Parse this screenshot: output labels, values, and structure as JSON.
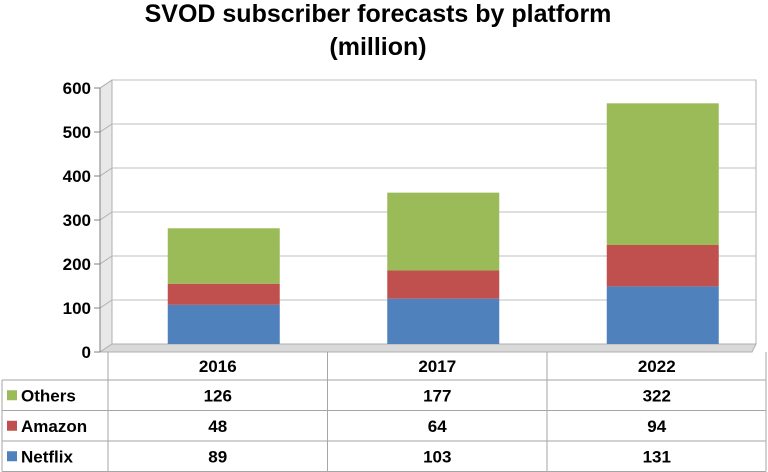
{
  "chart_data": {
    "type": "bar",
    "stacked": true,
    "title": "SVOD subscriber forecasts by platform",
    "subtitle": "(million)",
    "categories": [
      "2016",
      "2017",
      "2022"
    ],
    "series": [
      {
        "name": "Netflix",
        "values": [
          89,
          103,
          131
        ],
        "color": "#4f81bd"
      },
      {
        "name": "Amazon",
        "values": [
          48,
          64,
          94
        ],
        "color": "#c0504d"
      },
      {
        "name": "Others",
        "values": [
          126,
          177,
          322
        ],
        "color": "#9bbb59"
      }
    ],
    "ylim": [
      0,
      600
    ],
    "yticks": [
      0,
      100,
      200,
      300,
      400,
      500,
      600
    ],
    "grid": true,
    "legend": "data-table-below"
  }
}
